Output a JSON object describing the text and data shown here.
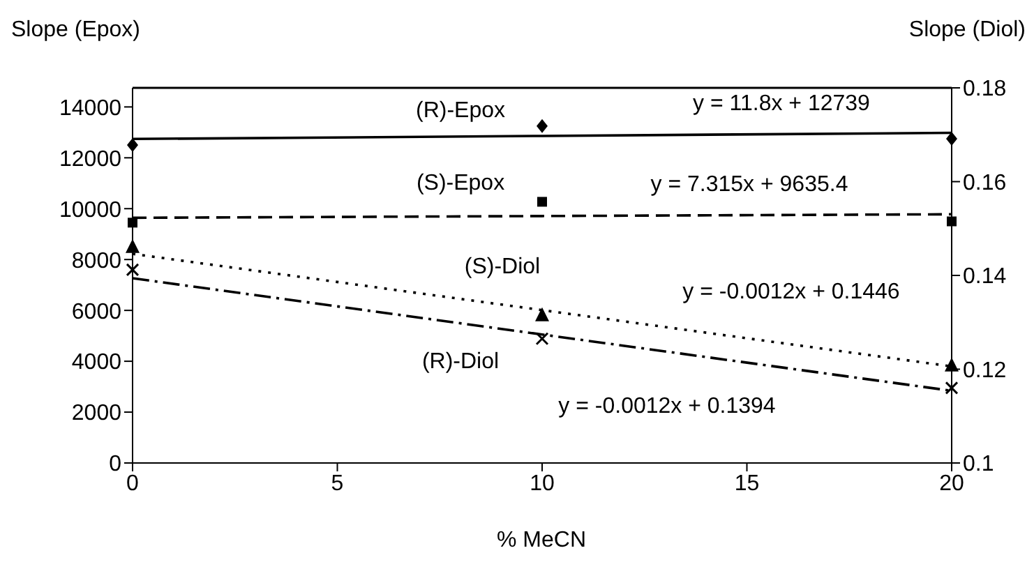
{
  "chart_data": {
    "type": "scatter",
    "xlabel": "% MeCN",
    "ylabel": "Slope (Epox)",
    "y2label": "Slope (Diol)",
    "x": [
      0,
      10,
      20
    ],
    "series": [
      {
        "name": "(R)-Epox",
        "color": "#000000",
        "marker": "diamond",
        "values": [
          12500,
          13250,
          12750
        ]
      },
      {
        "name": "(S)-Epox",
        "color": "#000000",
        "marker": "square",
        "values": [
          9450,
          10270,
          9500
        ]
      },
      {
        "name": "(S)-Diol",
        "color": "#000000",
        "marker": "triangle",
        "axis": "y2",
        "values": [
          0.146,
          0.1314,
          0.1207
        ]
      },
      {
        "name": "(R)-Diol",
        "color": "#000000",
        "marker": "cross",
        "axis": "y2",
        "values": [
          0.1412,
          0.1265,
          0.116
        ]
      },
      {
        "type": "line",
        "color": "#000000",
        "line_style": "solid",
        "values": [
          12740,
          12860,
          12980
        ]
      },
      {
        "type": "line",
        "color": "#000000",
        "line_style": "dashed",
        "values": [
          9640,
          9710,
          9780
        ]
      },
      {
        "type": "line",
        "color": "#000000",
        "line_style": "dotted",
        "axis": "y2",
        "values": [
          0.1446,
          0.1326,
          0.1206
        ]
      },
      {
        "type": "line",
        "color": "#000000",
        "line_style": "dashdot",
        "axis": "y2",
        "values": [
          0.1394,
          0.1274,
          0.1154
        ]
      }
    ],
    "annotations": [
      "y = 11.8x + 12739",
      "y = 7.315x + 9635.4",
      "y = -0.0012x + 0.1446",
      "y = -0.0012x + 0.1394"
    ],
    "xlim": [
      0,
      20
    ],
    "xticks": [
      0,
      5,
      10,
      15,
      20
    ],
    "ylim": [
      0,
      14750
    ],
    "yticks": [
      0,
      2000,
      4000,
      6000,
      8000,
      10000,
      12000,
      14000
    ],
    "y2lim": [
      0.1,
      0.18
    ],
    "y2ticks": [
      0.1,
      0.12,
      0.14,
      0.16,
      0.18
    ],
    "grid": false,
    "legend": false
  }
}
